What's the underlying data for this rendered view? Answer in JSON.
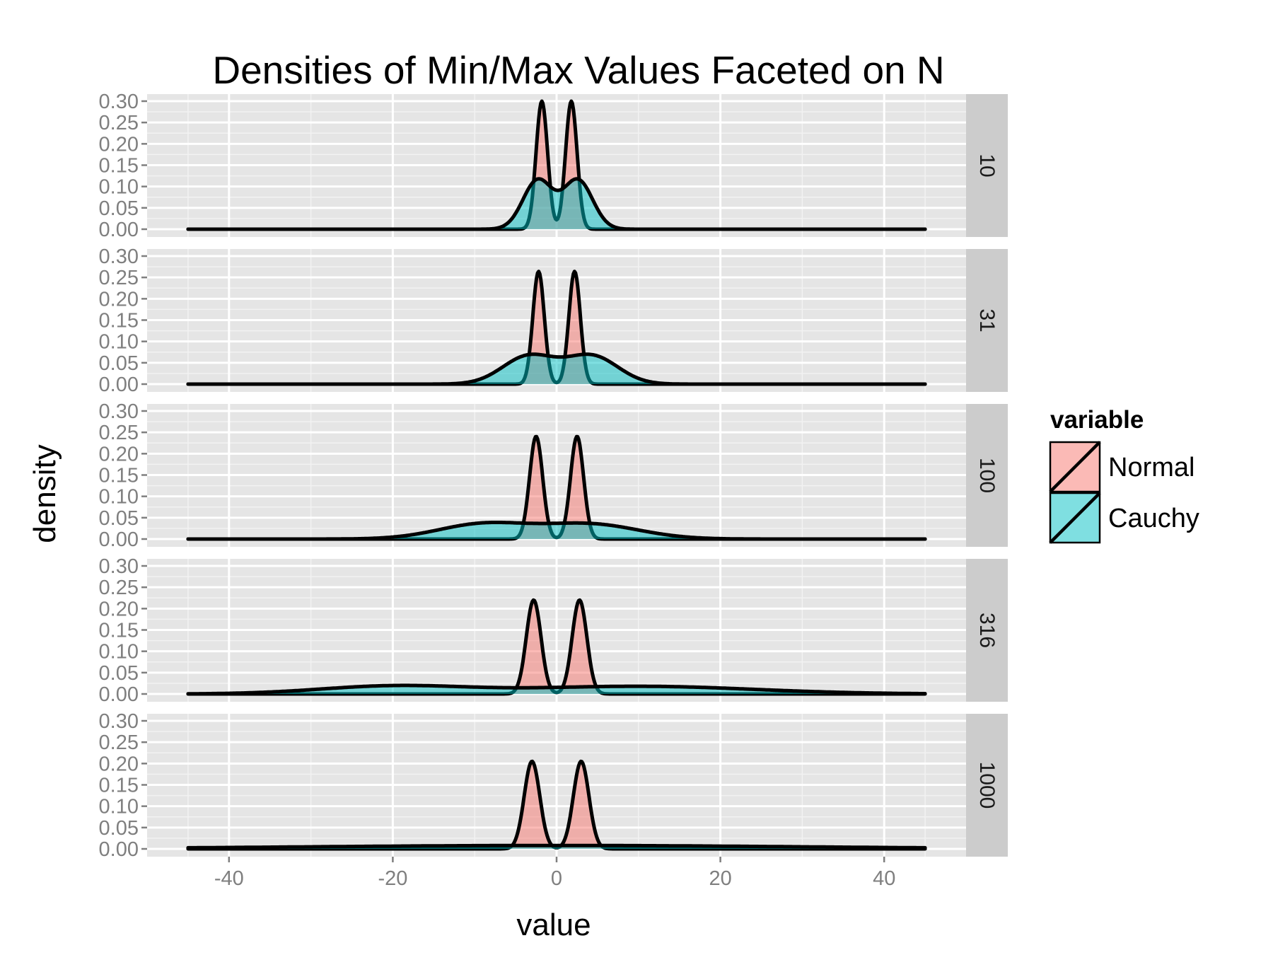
{
  "chart_data": {
    "type": "area",
    "title": "Densities of Min/Max Values Faceted on N",
    "xlabel": "value",
    "ylabel": "density",
    "xlim": [
      -50,
      50
    ],
    "ylim": [
      0,
      0.3
    ],
    "x_ticks": [
      -40,
      -20,
      0,
      20,
      40
    ],
    "x_tick_labels": [
      "-40",
      "-20",
      "0",
      "20",
      "40"
    ],
    "y_ticks": [
      0,
      0.05,
      0.1,
      0.15,
      0.2,
      0.25,
      0.3
    ],
    "y_tick_labels": [
      "0.00",
      "0.05",
      "0.10",
      "0.15",
      "0.20",
      "0.25",
      "0.30"
    ],
    "x_range": [
      -45,
      45
    ],
    "grid": true,
    "legend": {
      "title": "variable",
      "placement": "right",
      "entries": [
        {
          "name": "Normal",
          "color": "#F8766D"
        },
        {
          "name": "Cauchy",
          "color": "#00BFC4"
        }
      ]
    },
    "facets": [
      {
        "label": "10",
        "series": [
          {
            "name": "Normal",
            "components": [
              {
                "mu": -1.8,
                "sd": 0.7,
                "weight": 0.5
              },
              {
                "mu": 1.8,
                "sd": 0.7,
                "weight": 0.5
              }
            ],
            "peak": 0.3
          },
          {
            "name": "Cauchy",
            "components": [
              {
                "mu": -2.3,
                "sd": 1.8,
                "weight": 0.5
              },
              {
                "mu": 2.6,
                "sd": 1.8,
                "weight": 0.5
              }
            ],
            "peak": 0.118
          }
        ]
      },
      {
        "label": "31",
        "series": [
          {
            "name": "Normal",
            "components": [
              {
                "mu": -2.2,
                "sd": 0.7,
                "weight": 0.5
              },
              {
                "mu": 2.2,
                "sd": 0.7,
                "weight": 0.5
              }
            ],
            "peak": 0.264
          },
          {
            "name": "Cauchy",
            "components": [
              {
                "mu": -3.4,
                "sd": 3.2,
                "weight": 0.5
              },
              {
                "mu": 4.3,
                "sd": 3.2,
                "weight": 0.5
              }
            ],
            "peak": 0.07
          }
        ]
      },
      {
        "label": "100",
        "series": [
          {
            "name": "Normal",
            "components": [
              {
                "mu": -2.5,
                "sd": 0.8,
                "weight": 0.5
              },
              {
                "mu": 2.5,
                "sd": 0.8,
                "weight": 0.5
              }
            ],
            "peak": 0.24
          },
          {
            "name": "Cauchy",
            "components": [
              {
                "mu": -9,
                "sd": 5.5,
                "weight": 0.5
              },
              {
                "mu": 4,
                "sd": 6,
                "weight": 0.5
              }
            ],
            "peak": 0.039
          }
        ]
      },
      {
        "label": "316",
        "series": [
          {
            "name": "Normal",
            "components": [
              {
                "mu": -2.8,
                "sd": 0.9,
                "weight": 0.5
              },
              {
                "mu": 2.8,
                "sd": 0.9,
                "weight": 0.5
              }
            ],
            "peak": 0.22
          },
          {
            "name": "Cauchy",
            "components": [
              {
                "mu": -20,
                "sd": 9,
                "weight": 0.5
              },
              {
                "mu": 10,
                "sd": 14,
                "weight": 0.5
              }
            ],
            "peak": 0.02
          }
        ]
      },
      {
        "label": "1000",
        "series": [
          {
            "name": "Normal",
            "components": [
              {
                "mu": -3,
                "sd": 0.95,
                "weight": 0.5
              },
              {
                "mu": 3,
                "sd": 0.95,
                "weight": 0.5
              }
            ],
            "peak": 0.205
          },
          {
            "name": "Cauchy",
            "components": [
              {
                "mu": 0,
                "sd": 30,
                "weight": 1
              }
            ],
            "peak": 0.008
          }
        ]
      }
    ]
  }
}
